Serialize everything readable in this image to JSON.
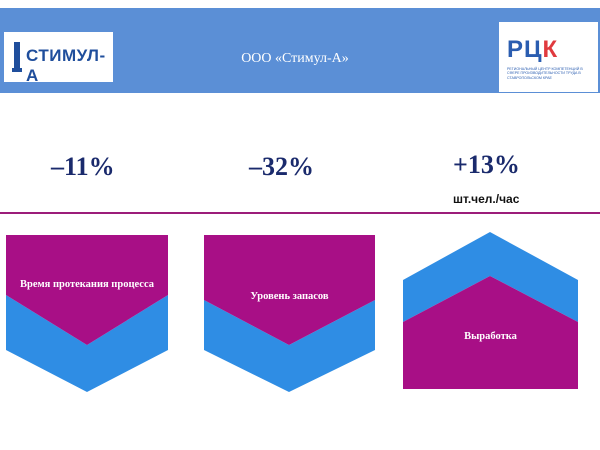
{
  "header": {
    "title": "ООО «Стимул-А»",
    "logo_left": {
      "text": "СТИМУЛ-А"
    },
    "logo_right": {
      "letters_blue": "РЦ",
      "letters_red": "К",
      "caption": "Региональный центр компетенций в сфере производительности труда в Ставропольском крае"
    }
  },
  "metrics": [
    {
      "value": "–11%",
      "unit": "",
      "label": "Время протекания процесса"
    },
    {
      "value": "–32%",
      "unit": "",
      "label": "Уровень запасов"
    },
    {
      "value": "+13%",
      "unit": "шт.чел./час",
      "label": "Выработка"
    }
  ],
  "colors": {
    "header_blue": "#5b8fd6",
    "magenta": "#a80f86",
    "blue": "#2f8de4",
    "divider": "#9c1d7a",
    "metric_text": "#1a2a6c"
  }
}
